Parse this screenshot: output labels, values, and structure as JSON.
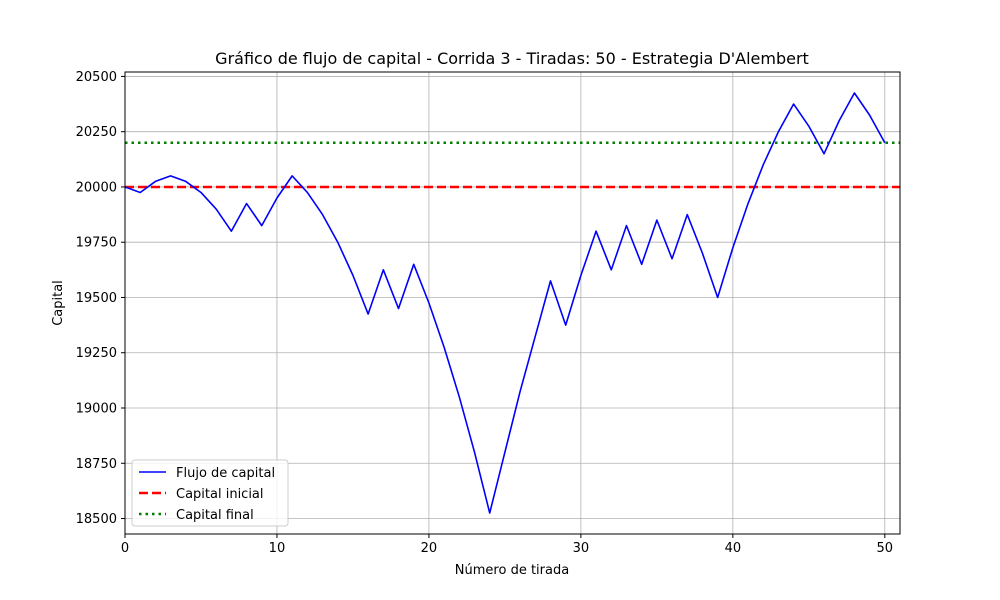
{
  "chart_data": {
    "type": "line",
    "title": "Gráfico de flujo de capital - Corrida 3 - Tiradas: 50 - Estrategia D'Alembert",
    "xlabel": "Número de tirada",
    "ylabel": "Capital",
    "xlim": [
      0,
      51
    ],
    "ylim": [
      18430,
      20520
    ],
    "xticks": [
      0,
      10,
      20,
      30,
      40,
      50
    ],
    "yticks": [
      18500,
      18750,
      19000,
      19250,
      19500,
      19750,
      20000,
      20250,
      20500
    ],
    "grid": true,
    "legend_position": "lower-left",
    "series": [
      {
        "name": "Flujo de capital",
        "color": "#0000ff",
        "style": "solid",
        "x": [
          0,
          1,
          2,
          3,
          4,
          5,
          6,
          7,
          8,
          9,
          10,
          11,
          12,
          13,
          14,
          15,
          16,
          17,
          18,
          19,
          20,
          21,
          22,
          23,
          24,
          25,
          26,
          27,
          28,
          29,
          30,
          31,
          32,
          33,
          34,
          35,
          36,
          37,
          38,
          39,
          40,
          41,
          42,
          43,
          44,
          45,
          46,
          47,
          48,
          49,
          50
        ],
        "y": [
          20000,
          19975,
          20025,
          20050,
          20025,
          19975,
          19900,
          19800,
          19925,
          19825,
          19950,
          20050,
          19975,
          19875,
          19750,
          19600,
          19425,
          19625,
          19450,
          19650,
          19475,
          19275,
          19050,
          18800,
          18525,
          18800,
          19075,
          19325,
          19575,
          19375,
          19600,
          19800,
          19625,
          19825,
          19650,
          19850,
          19675,
          19875,
          19700,
          19500,
          19725,
          19925,
          20100,
          20250,
          20375,
          20275,
          20150,
          20300,
          20425,
          20325,
          20200
        ]
      },
      {
        "name": "Capital inicial",
        "color": "#ff0000",
        "style": "dashed",
        "value": 20000
      },
      {
        "name": "Capital final",
        "color": "#008000",
        "style": "dotted",
        "value": 20200
      }
    ]
  }
}
